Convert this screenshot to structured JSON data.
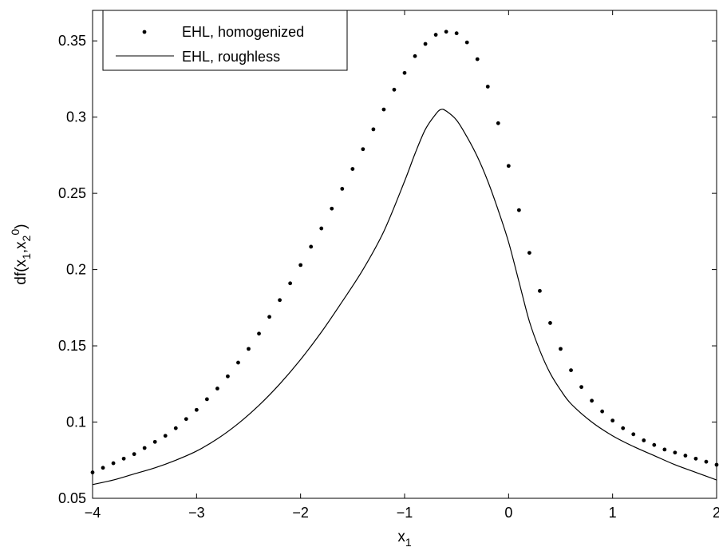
{
  "chart_data": {
    "type": "line",
    "title": "",
    "xlabel": "x_1",
    "ylabel": "d_f(x_1,x_2^0)",
    "xlim": [
      -4,
      2
    ],
    "ylim": [
      0.05,
      0.37
    ],
    "xticks": [
      -4,
      -3,
      -2,
      -1,
      0,
      1,
      2
    ],
    "xtick_labels": [
      "−4",
      "−3",
      "−2",
      "−1",
      "0",
      "1",
      "2"
    ],
    "yticks": [
      0.05,
      0.1,
      0.15,
      0.2,
      0.25,
      0.3,
      0.35
    ],
    "ytick_labels": [
      "0.05",
      "0.1",
      "0.15",
      "0.2",
      "0.25",
      "0.3",
      "0.35"
    ],
    "grid": false,
    "legend_position": "top-left",
    "series": [
      {
        "name": "EHL, homogenized",
        "style": "dots",
        "color": "#000000",
        "x": [
          -4.0,
          -3.9,
          -3.8,
          -3.7,
          -3.6,
          -3.5,
          -3.4,
          -3.3,
          -3.2,
          -3.1,
          -3.0,
          -2.9,
          -2.8,
          -2.7,
          -2.6,
          -2.5,
          -2.4,
          -2.3,
          -2.2,
          -2.1,
          -2.0,
          -1.9,
          -1.8,
          -1.7,
          -1.6,
          -1.5,
          -1.4,
          -1.3,
          -1.2,
          -1.1,
          -1.0,
          -0.9,
          -0.8,
          -0.7,
          -0.6,
          -0.5,
          -0.4,
          -0.3,
          -0.2,
          -0.1,
          0.0,
          0.1,
          0.2,
          0.3,
          0.4,
          0.5,
          0.6,
          0.7,
          0.8,
          0.9,
          1.0,
          1.1,
          1.2,
          1.3,
          1.4,
          1.5,
          1.6,
          1.7,
          1.8,
          1.9,
          2.0
        ],
        "y": [
          0.067,
          0.07,
          0.073,
          0.076,
          0.079,
          0.083,
          0.087,
          0.091,
          0.096,
          0.102,
          0.108,
          0.115,
          0.122,
          0.13,
          0.139,
          0.148,
          0.158,
          0.169,
          0.18,
          0.191,
          0.203,
          0.215,
          0.227,
          0.24,
          0.253,
          0.266,
          0.279,
          0.292,
          0.305,
          0.318,
          0.329,
          0.34,
          0.348,
          0.354,
          0.356,
          0.355,
          0.349,
          0.338,
          0.32,
          0.296,
          0.268,
          0.239,
          0.211,
          0.186,
          0.165,
          0.148,
          0.134,
          0.123,
          0.114,
          0.107,
          0.101,
          0.096,
          0.092,
          0.088,
          0.085,
          0.082,
          0.08,
          0.078,
          0.076,
          0.074,
          0.072
        ]
      },
      {
        "name": "EHL, roughless",
        "style": "line",
        "color": "#000000",
        "x": [
          -4.0,
          -3.8,
          -3.6,
          -3.4,
          -3.2,
          -3.0,
          -2.8,
          -2.6,
          -2.4,
          -2.2,
          -2.0,
          -1.8,
          -1.6,
          -1.4,
          -1.2,
          -1.0,
          -0.9,
          -0.8,
          -0.7,
          -0.65,
          -0.6,
          -0.5,
          -0.4,
          -0.3,
          -0.2,
          -0.1,
          0.0,
          0.1,
          0.2,
          0.3,
          0.4,
          0.5,
          0.6,
          0.8,
          1.0,
          1.2,
          1.4,
          1.6,
          1.8,
          2.0
        ],
        "y": [
          0.059,
          0.062,
          0.066,
          0.07,
          0.075,
          0.081,
          0.089,
          0.099,
          0.111,
          0.125,
          0.141,
          0.159,
          0.179,
          0.2,
          0.225,
          0.258,
          0.276,
          0.292,
          0.302,
          0.305,
          0.304,
          0.298,
          0.287,
          0.274,
          0.258,
          0.239,
          0.218,
          0.192,
          0.166,
          0.147,
          0.132,
          0.121,
          0.112,
          0.1,
          0.091,
          0.084,
          0.078,
          0.072,
          0.067,
          0.062
        ]
      }
    ]
  }
}
